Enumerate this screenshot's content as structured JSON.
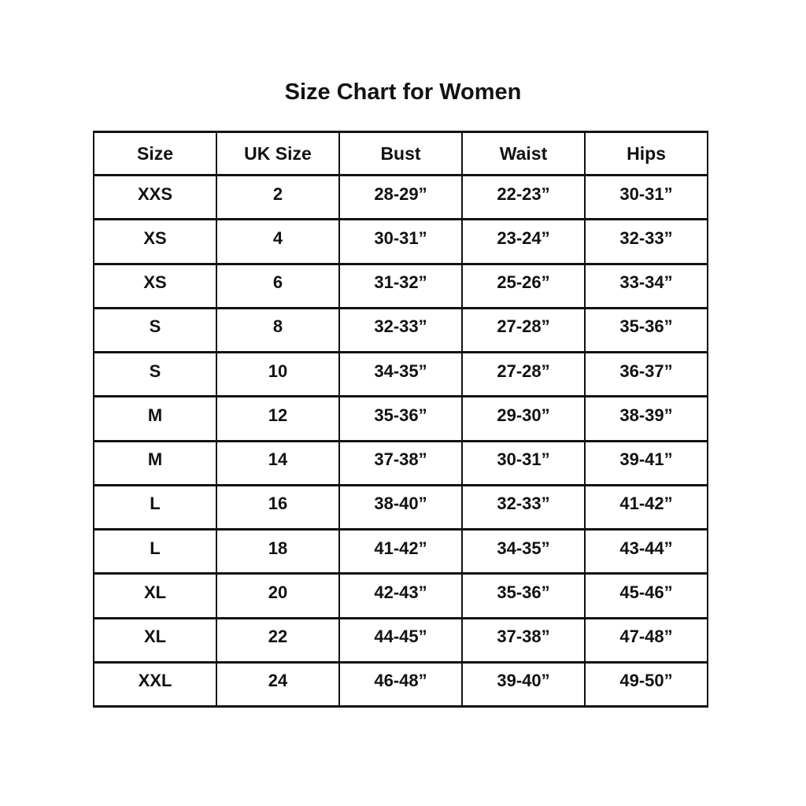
{
  "title": "Size Chart for Women",
  "table": {
    "headers": [
      "Size",
      "UK Size",
      "Bust",
      "Waist",
      "Hips"
    ],
    "rows": [
      [
        "XXS",
        "2",
        "28-29”",
        "22-23”",
        "30-31”"
      ],
      [
        "XS",
        "4",
        "30-31”",
        "23-24”",
        "32-33”"
      ],
      [
        "XS",
        "6",
        "31-32”",
        "25-26”",
        "33-34”"
      ],
      [
        "S",
        "8",
        "32-33”",
        "27-28”",
        "35-36”"
      ],
      [
        "S",
        "10",
        "34-35”",
        "27-28”",
        "36-37”"
      ],
      [
        "M",
        "12",
        "35-36”",
        "29-30”",
        "38-39”"
      ],
      [
        "M",
        "14",
        "37-38”",
        "30-31”",
        "39-41”"
      ],
      [
        "L",
        "16",
        "38-40”",
        "32-33”",
        "41-42”"
      ],
      [
        "L",
        "18",
        "41-42”",
        "34-35”",
        "43-44”"
      ],
      [
        "XL",
        "20",
        "42-43”",
        "35-36”",
        "45-46”"
      ],
      [
        "XL",
        "22",
        "44-45”",
        "37-38”",
        "47-48”"
      ],
      [
        "XXL",
        "24",
        "46-48”",
        "39-40”",
        "49-50”"
      ]
    ]
  },
  "chart_data": {
    "type": "table",
    "title": "Size Chart for Women",
    "columns": [
      "Size",
      "UK Size",
      "Bust",
      "Waist",
      "Hips"
    ],
    "rows": [
      [
        "XXS",
        "2",
        "28-29”",
        "22-23”",
        "30-31”"
      ],
      [
        "XS",
        "4",
        "30-31”",
        "23-24”",
        "32-33”"
      ],
      [
        "XS",
        "6",
        "31-32”",
        "25-26”",
        "33-34”"
      ],
      [
        "S",
        "8",
        "32-33”",
        "27-28”",
        "35-36”"
      ],
      [
        "S",
        "10",
        "34-35”",
        "27-28”",
        "36-37”"
      ],
      [
        "M",
        "12",
        "35-36”",
        "29-30”",
        "38-39”"
      ],
      [
        "M",
        "14",
        "37-38”",
        "30-31”",
        "39-41”"
      ],
      [
        "L",
        "16",
        "38-40”",
        "32-33”",
        "41-42”"
      ],
      [
        "L",
        "18",
        "41-42”",
        "34-35”",
        "43-44”"
      ],
      [
        "XL",
        "20",
        "42-43”",
        "35-36”",
        "45-46”"
      ],
      [
        "XL",
        "22",
        "44-45”",
        "37-38”",
        "47-48”"
      ],
      [
        "XXL",
        "24",
        "46-48”",
        "39-40”",
        "49-50”"
      ]
    ],
    "layout": {
      "grid": true,
      "header_row": true,
      "text_align": "center"
    }
  },
  "colors": {
    "background": "#ffffff",
    "text": "#121212",
    "border": "#121212"
  }
}
